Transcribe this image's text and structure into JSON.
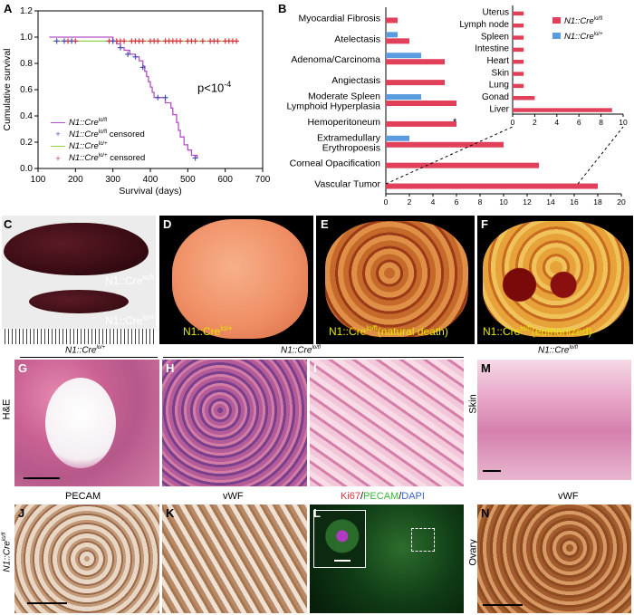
{
  "panel_letters": {
    "A": "A",
    "B": "B",
    "C": "C",
    "D": "D",
    "E": "E",
    "F": "F",
    "G": "G",
    "H": "H",
    "I": "I",
    "J": "J",
    "K": "K",
    "L": "L",
    "M": "M",
    "N": "N"
  },
  "chart_data": [
    {
      "type": "line",
      "panel": "A",
      "xlabel": "Survival (days)",
      "ylabel": "Cumulative survival",
      "xlim": [
        100,
        700
      ],
      "ylim": [
        0.0,
        1.2
      ],
      "xticks": [
        "100",
        "200",
        "300",
        "400",
        "500",
        "600",
        "700"
      ],
      "yticks": [
        "0.0",
        "0.2",
        "0.4",
        "0.6",
        "0.8",
        "1.0",
        "1.2"
      ],
      "annotation": "p<10",
      "annotation_exp": "-4",
      "series": [
        {
          "name": "N1::Cre lo/fl",
          "label_main": "N1::Cre",
          "label_sup": "lo/fl",
          "color": "#b44fc6",
          "x": [
            130,
            290,
            300,
            310,
            320,
            330,
            345,
            360,
            370,
            380,
            385,
            390,
            395,
            400,
            405,
            410,
            420,
            430,
            440,
            455,
            460,
            470,
            475,
            480,
            490,
            500,
            510,
            525
          ],
          "y": [
            1.0,
            1.0,
            0.97,
            0.95,
            0.92,
            0.9,
            0.87,
            0.85,
            0.82,
            0.78,
            0.74,
            0.7,
            0.66,
            0.62,
            0.58,
            0.54,
            0.54,
            0.54,
            0.5,
            0.46,
            0.41,
            0.35,
            0.29,
            0.24,
            0.18,
            0.14,
            0.1,
            0.08
          ]
        },
        {
          "name": "N1::Cre lo/fl censored",
          "label_main": "N1::Cre",
          "label_sup": "lo/fl",
          "label_suffix": " censored",
          "color": "#4a4fb5",
          "x": [
            150,
            170,
            190,
            300,
            320,
            340,
            360,
            380,
            420,
            440,
            520
          ],
          "y": [
            0.97,
            0.97,
            0.97,
            0.97,
            0.92,
            0.87,
            0.85,
            0.77,
            0.54,
            0.54,
            0.08
          ]
        },
        {
          "name": "N1::Cre lo/+",
          "label_main": "N1::Cre",
          "label_sup": "lo/+",
          "color": "#8fd14f",
          "x": [
            140,
            630
          ],
          "y": [
            0.97,
            0.97
          ]
        },
        {
          "name": "N1::Cre lo/+ censored",
          "label_main": "N1::Cre",
          "label_sup": "lo/+",
          "label_suffix": " censored",
          "color": "#d9333f",
          "x": [
            180,
            200,
            290,
            300,
            310,
            320,
            330,
            350,
            360,
            370,
            380,
            400,
            410,
            420,
            440,
            450,
            460,
            470,
            480,
            500,
            510,
            520,
            540,
            560,
            570,
            580,
            600,
            610,
            620,
            630
          ],
          "y": [
            0.97,
            0.97,
            0.97,
            0.97,
            0.97,
            0.97,
            0.97,
            0.97,
            0.97,
            0.97,
            0.97,
            0.97,
            0.97,
            0.97,
            0.97,
            0.97,
            0.97,
            0.97,
            0.97,
            0.97,
            0.97,
            0.97,
            0.97,
            0.97,
            0.97,
            0.97,
            0.97,
            0.97,
            0.97,
            0.97
          ]
        }
      ]
    },
    {
      "type": "bar",
      "panel": "B-main",
      "orientation": "horizontal",
      "xlim": [
        0,
        20
      ],
      "xticks": [
        "0",
        "2",
        "4",
        "6",
        "8",
        "10",
        "12",
        "14",
        "16",
        "18",
        "20"
      ],
      "categories": [
        "Myocardial Fibrosis",
        "Atelectasis",
        "Adenoma/Carcinoma",
        "Angiectasis",
        "Moderate Spleen|Lymphoid Hyperplasia",
        "Hemoperitoneum",
        "Extramedullary|Erythropoesis",
        "Corneal Opacification",
        "Vascular Tumor"
      ],
      "series": [
        {
          "name": "N1::Cre lo/fl",
          "color": "#e0405a",
          "values": [
            1,
            2,
            5,
            5,
            6,
            6,
            10,
            13,
            18
          ]
        },
        {
          "name": "N1::Cre lo/+",
          "color": "#5b9be0",
          "values": [
            0,
            1,
            3,
            0,
            3,
            0,
            2,
            0,
            0
          ]
        }
      ],
      "marker_star": "*"
    },
    {
      "type": "bar",
      "panel": "B-inset",
      "orientation": "horizontal",
      "xlim": [
        0,
        10
      ],
      "xticks": [
        "0",
        "2",
        "4",
        "6",
        "8",
        "10"
      ],
      "categories": [
        "Uterus",
        "Lymph node",
        "Spleen",
        "Intestine",
        "Heart",
        "Skin",
        "Lung",
        "Gonad",
        "Liver"
      ],
      "series": [
        {
          "name": "N1::Cre lo/fl",
          "color": "#e0405a",
          "values": [
            1,
            1,
            1,
            1,
            1,
            1,
            1,
            2,
            9
          ]
        },
        {
          "name": "N1::Cre lo/+",
          "color": "#5b9be0",
          "values": [
            0,
            0,
            0,
            0,
            0,
            0,
            0,
            0,
            0
          ]
        }
      ],
      "legend": [
        {
          "main": "N1::Cre",
          "sup": "lo/fl",
          "color": "#e0405a"
        },
        {
          "main": "N1::Cre",
          "sup": "lo/+",
          "color": "#5b9be0"
        }
      ]
    }
  ],
  "photos": {
    "c_top": "N1::Cre",
    "c_top_sup": "lo/fl",
    "c_bottom": "N1::Cre",
    "c_bottom_sup": "lo/+",
    "d": "N1::Cre",
    "d_sup": "lo/+",
    "e": "N1::Cre",
    "e_sup": "lo/fl",
    "e_suffix": "(natural death)",
    "f": "N1::Cre",
    "f_sup": "lo/fl",
    "f_suffix": "(euthanized)"
  },
  "histology": {
    "header_g": "N1::Cre",
    "header_g_sup": "lo/+",
    "header_hi": "N1::Cre",
    "header_hi_sup": "lo/fl",
    "header_m": "N1::Cre",
    "header_m_sup": "lo/fl",
    "side_he": "H&E",
    "side_skin": "Skin",
    "side_ovary": "Ovary",
    "side_j_main": "N1::Cre",
    "side_j_sup": "lo/fl",
    "label_pecam": "PECAM",
    "label_vwf_k": "vWF",
    "label_l_ki67": "Ki67",
    "label_l_sep1": "/",
    "label_l_pecam": "PECAM",
    "label_l_sep2": "/",
    "label_l_dapi": "DAPI",
    "label_vwf_n": "vWF"
  },
  "colors": {
    "lofl": "#e0405a",
    "loplus": "#5b9be0",
    "ki67": "#e0303a",
    "pecam_if": "#38b838",
    "dapi": "#3d5bd6",
    "photo_label": "#e6e600"
  }
}
